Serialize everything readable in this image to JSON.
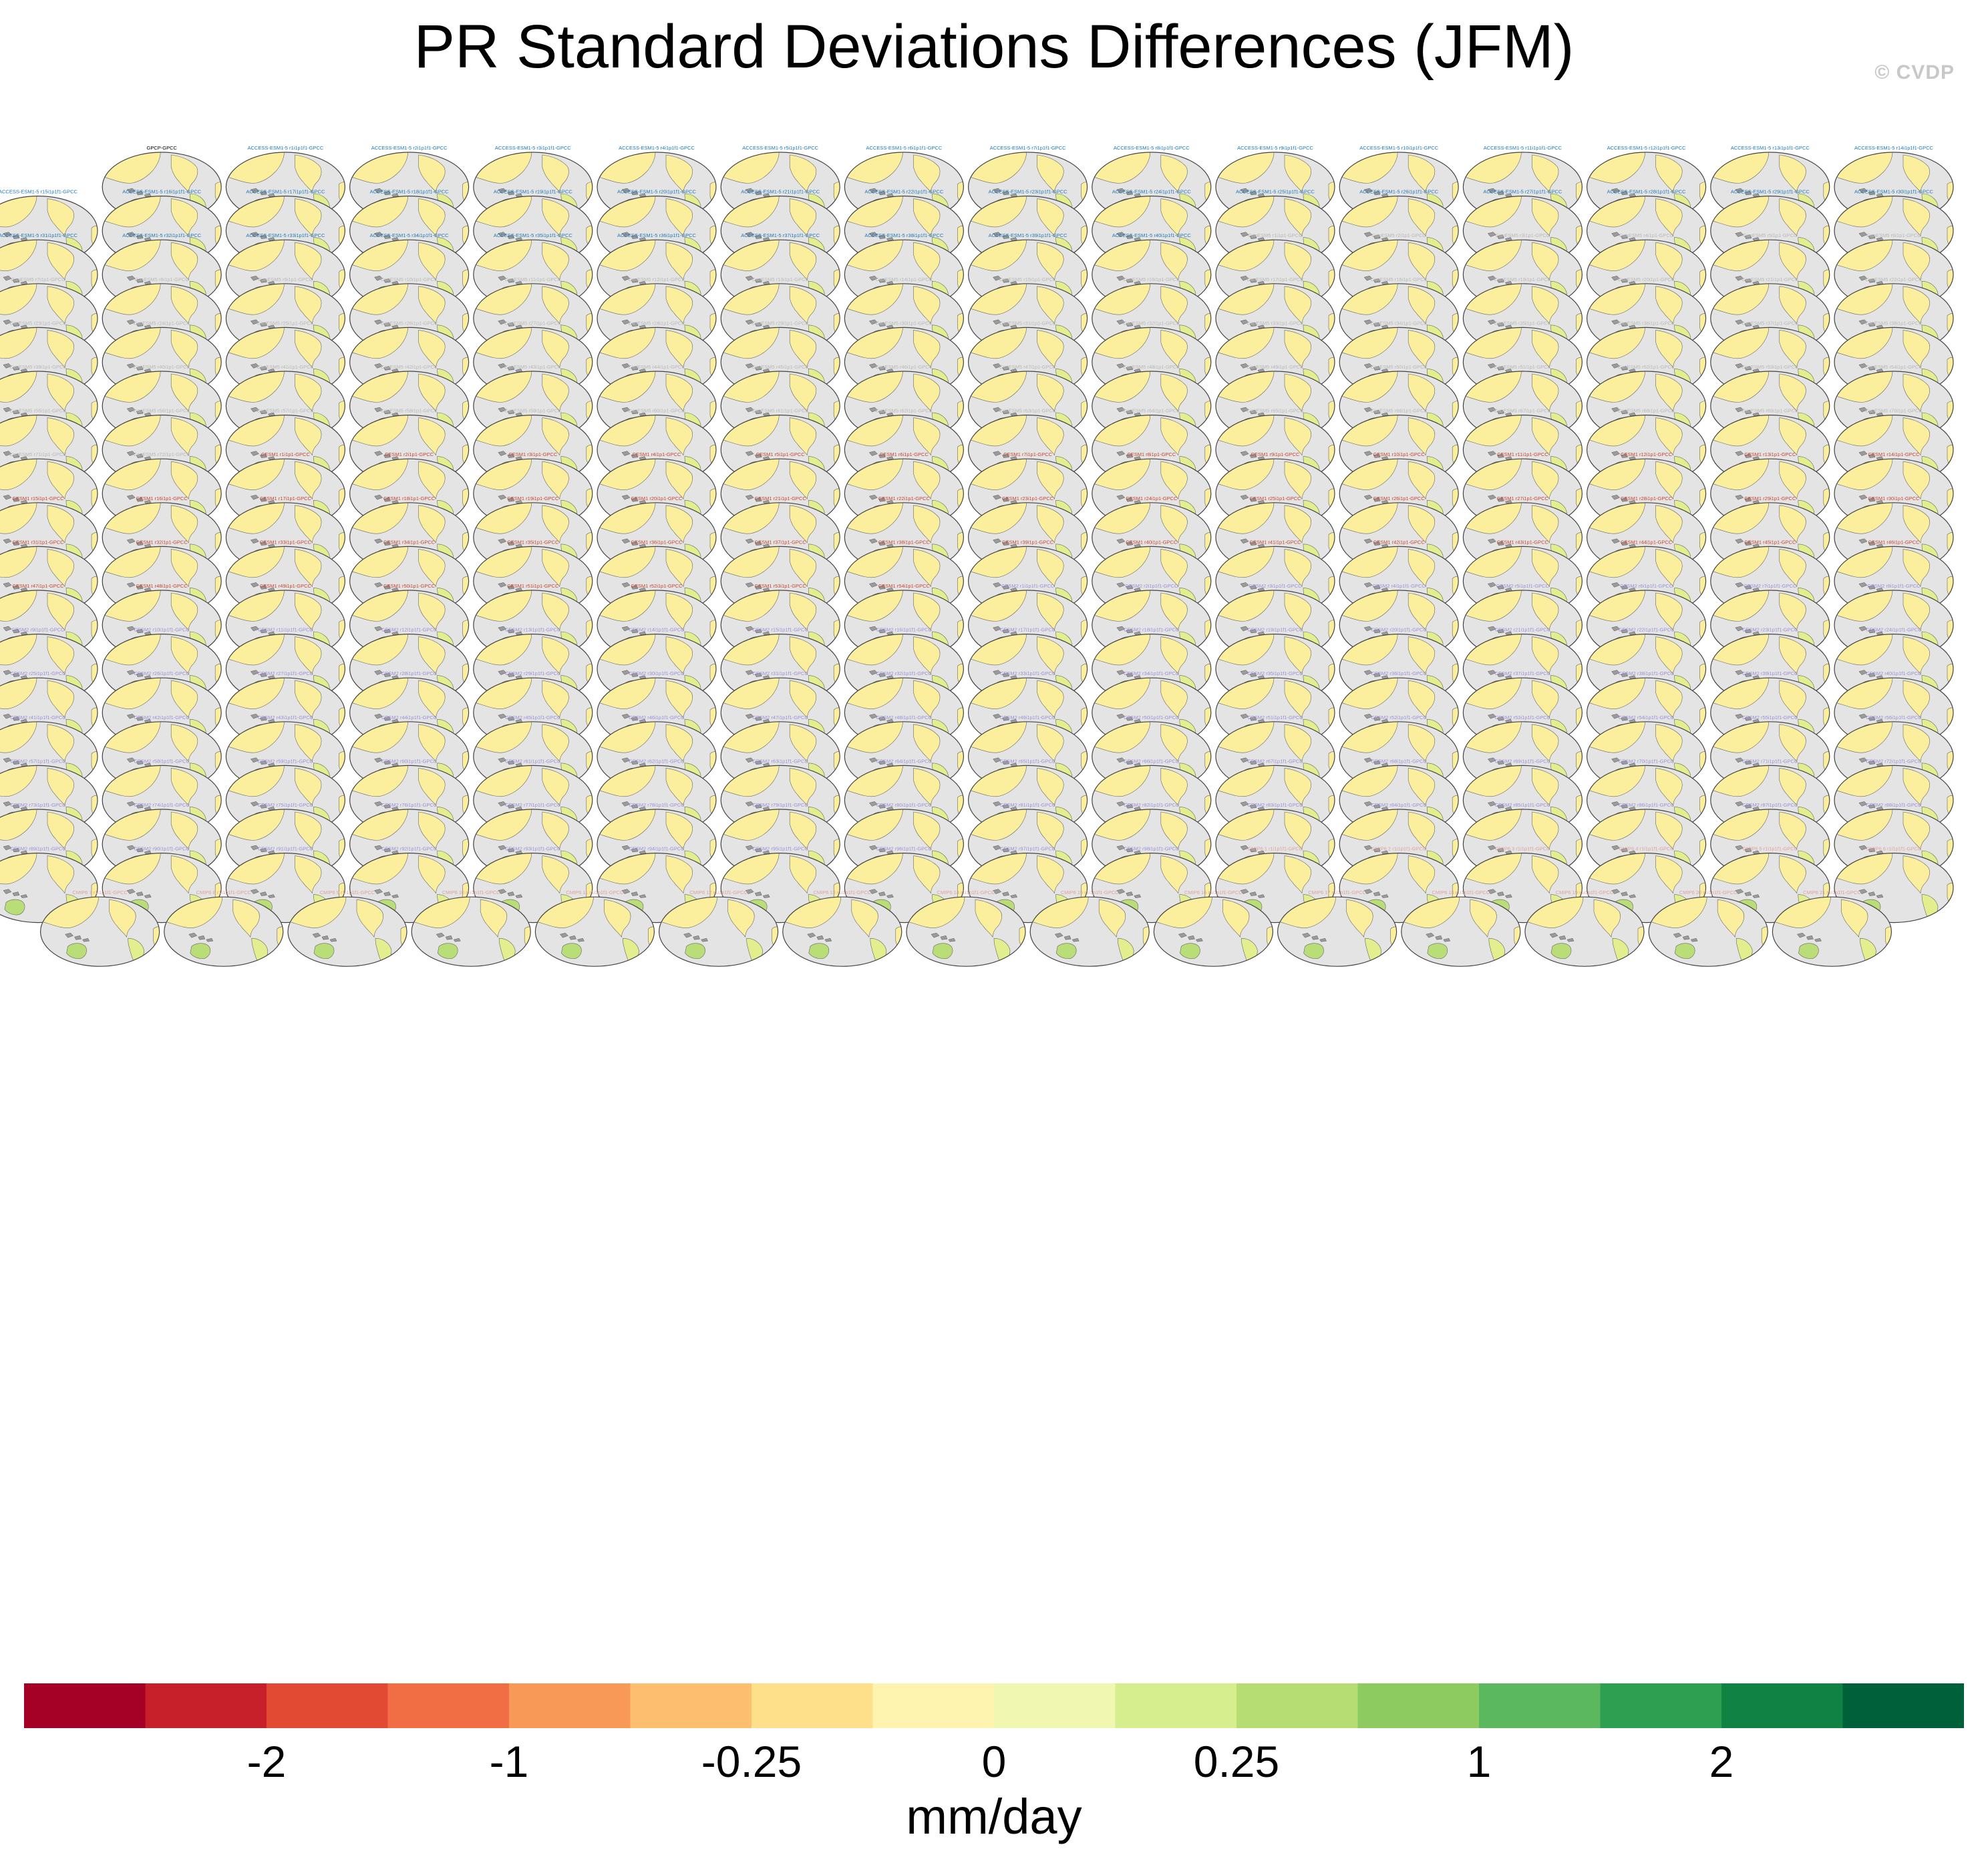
{
  "figure": {
    "title": "PR Standard Deviations Differences (JFM)",
    "watermark": "© CVDP"
  },
  "chart_data": {
    "type": "map_panel_grid",
    "variable": "PR",
    "statistic": "Standard Deviations Differences",
    "season": "JFM",
    "observations": "GPCC",
    "rows": 18,
    "panels_per_full_row": 16,
    "panel_counts_per_row": [
      15,
      16,
      16,
      16,
      16,
      16,
      16,
      16,
      16,
      16,
      16,
      16,
      16,
      16,
      16,
      16,
      16,
      15
    ],
    "first_panel_title": "GPCP-GPCC",
    "panel_title_colors": {
      "reference": "#000000",
      "ACCESS-ESM1-5": "#1f78b4",
      "CanESM5": "#b8b8b8",
      "CESM1": "#c8432f",
      "CESM2": "#9b8ed8",
      "CMIP6": "#e0a0a0"
    },
    "colorbar": {
      "units": "mm/day",
      "colors": [
        "#a50026",
        "#c8202b",
        "#e34a33",
        "#f16d43",
        "#f99958",
        "#fdbf6f",
        "#fee08b",
        "#fff3b0",
        "#eff7b0",
        "#d7ee8e",
        "#b5dd74",
        "#8dcb61",
        "#5cb85f",
        "#2e9f51",
        "#0f8244",
        "#00603a"
      ],
      "tick_labels": [
        "-2",
        "-1",
        "-0.25",
        "0",
        "0.25",
        "1",
        "2"
      ],
      "tick_boundary_index": [
        2,
        4,
        6,
        8,
        10,
        12,
        14
      ]
    }
  }
}
